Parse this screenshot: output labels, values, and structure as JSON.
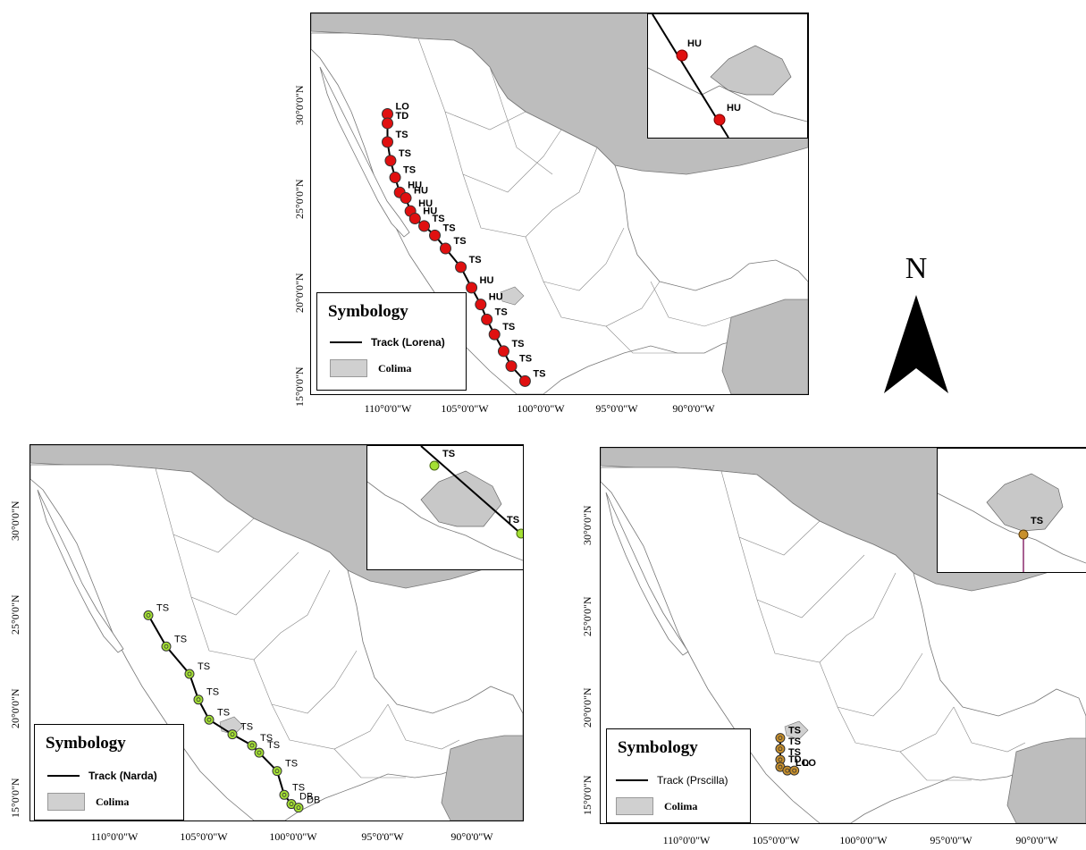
{
  "north_arrow": {
    "letter": "N"
  },
  "maps": [
    {
      "id": "lorena",
      "legend": {
        "title": "Symbology",
        "track_label": "Track (Lorena)",
        "area_label": "Colima"
      },
      "x_ticks": [
        "110°0'0\"W",
        "105°0'0\"W",
        "100°0'0\"W",
        "95°0'0\"W",
        "90°0'0\"W"
      ],
      "y_ticks": [
        "30°0'0\"N",
        "25°0'0\"N",
        "20°0'0\"N",
        "15°0'0\"N"
      ],
      "track_color": "#000000",
      "point_color": "#e01010",
      "points": [
        {
          "lon": -110.0,
          "lat": 28.0,
          "label": "LO"
        },
        {
          "lon": -110.0,
          "lat": 27.5,
          "label": "TD"
        },
        {
          "lon": -110.0,
          "lat": 26.5,
          "label": "TS"
        },
        {
          "lon": -109.8,
          "lat": 25.5,
          "label": "TS"
        },
        {
          "lon": -109.5,
          "lat": 24.6,
          "label": "TS"
        },
        {
          "lon": -109.2,
          "lat": 23.8,
          "label": "HU"
        },
        {
          "lon": -108.8,
          "lat": 23.5,
          "label": "HU"
        },
        {
          "lon": -108.5,
          "lat": 22.8,
          "label": "HU"
        },
        {
          "lon": -108.2,
          "lat": 22.4,
          "label": "HU"
        },
        {
          "lon": -107.6,
          "lat": 22.0,
          "label": "TS"
        },
        {
          "lon": -106.9,
          "lat": 21.5,
          "label": "TS"
        },
        {
          "lon": -106.2,
          "lat": 20.8,
          "label": "TS"
        },
        {
          "lon": -105.2,
          "lat": 19.8,
          "label": "TS"
        },
        {
          "lon": -104.5,
          "lat": 18.7,
          "label": "HU"
        },
        {
          "lon": -103.9,
          "lat": 17.8,
          "label": "HU"
        },
        {
          "lon": -103.5,
          "lat": 17.0,
          "label": "TS"
        },
        {
          "lon": -103.0,
          "lat": 16.2,
          "label": "TS"
        },
        {
          "lon": -102.4,
          "lat": 15.3,
          "label": "TS"
        },
        {
          "lon": -101.9,
          "lat": 14.5,
          "label": "TS"
        },
        {
          "lon": -101.0,
          "lat": 13.7,
          "label": "TS"
        }
      ],
      "inset_labels": [
        "HU",
        "HU"
      ]
    },
    {
      "id": "narda",
      "legend": {
        "title": "Symbology",
        "track_label": "Track (Narda)",
        "area_label": "Colima"
      },
      "x_ticks": [
        "110°0'0\"W",
        "105°0'0\"W",
        "100°0'0\"W",
        "95°0'0\"W",
        "90°0'0\"W"
      ],
      "y_ticks": [
        "30°0'0\"N",
        "25°0'0\"N",
        "20°0'0\"N",
        "15°0'0\"N"
      ],
      "track_color": "#000000",
      "point_color": "#a4e034",
      "points": [
        {
          "lon": -108.0,
          "lat": 24.7,
          "label": "TS"
        },
        {
          "lon": -107.0,
          "lat": 23.0,
          "label": "TS"
        },
        {
          "lon": -105.7,
          "lat": 21.5,
          "label": "TS"
        },
        {
          "lon": -105.2,
          "lat": 20.1,
          "label": "TS"
        },
        {
          "lon": -104.6,
          "lat": 19.0,
          "label": "TS"
        },
        {
          "lon": -103.3,
          "lat": 18.2,
          "label": "TS"
        },
        {
          "lon": -102.2,
          "lat": 17.6,
          "label": "TS"
        },
        {
          "lon": -101.8,
          "lat": 17.2,
          "label": "TS"
        },
        {
          "lon": -100.8,
          "lat": 16.2,
          "label": "TS"
        },
        {
          "lon": -100.4,
          "lat": 14.9,
          "label": "TS"
        },
        {
          "lon": -100.0,
          "lat": 14.4,
          "label": "DB"
        },
        {
          "lon": -99.6,
          "lat": 14.2,
          "label": "DB"
        }
      ],
      "inset_labels": [
        "TS",
        "TS"
      ]
    },
    {
      "id": "priscilla",
      "legend": {
        "title": "Symbology",
        "track_label": "Track (Prscilla)",
        "area_label": "Colima"
      },
      "x_ticks": [
        "110°0'0\"W",
        "105°0'0\"W",
        "100°0'0\"W",
        "95°0'0\"W",
        "90°0'0\"W"
      ],
      "y_ticks": [
        "30°0'0\"N",
        "25°0'0\"N",
        "20°0'0\"N",
        "15°0'0\"N"
      ],
      "track_color": "#000000",
      "point_color": "#c8902c",
      "points": [
        {
          "lon": -104.0,
          "lat": 18.2,
          "label": "TS"
        },
        {
          "lon": -104.0,
          "lat": 17.6,
          "label": "TS"
        },
        {
          "lon": -104.0,
          "lat": 17.0,
          "label": "TS"
        },
        {
          "lon": -104.0,
          "lat": 16.6,
          "label": "TD"
        },
        {
          "lon": -103.6,
          "lat": 16.4,
          "label": "LO"
        },
        {
          "lon": -103.2,
          "lat": 16.4,
          "label": "LO"
        }
      ],
      "inset_labels": [
        "TS"
      ]
    }
  ]
}
